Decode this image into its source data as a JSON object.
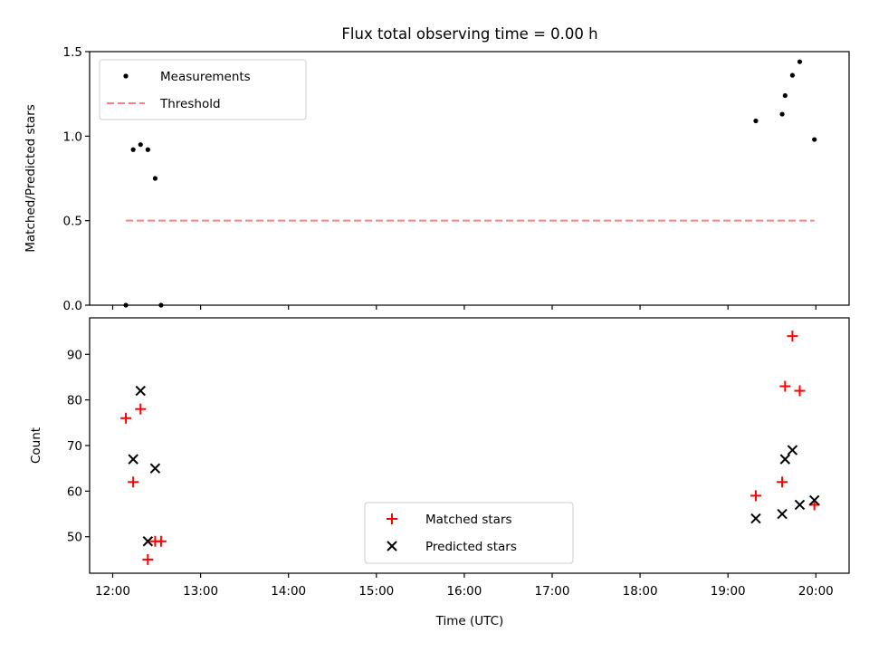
{
  "chart_data": {
    "type": "scatter",
    "title": "Flux total observing time = 0.00 h",
    "x_tick_labels": [
      "12:00",
      "13:00",
      "14:00",
      "15:00",
      "16:00",
      "17:00",
      "18:00",
      "19:00",
      "20:00"
    ],
    "xlabel": "Time (UTC)",
    "top_panel": {
      "ylabel": "Matched/Predicted stars",
      "ylim": [
        0,
        1.5
      ],
      "y_ticks": [
        0.0,
        0.5,
        1.0,
        1.5
      ],
      "y_tick_labels": [
        "0.0",
        "0.5",
        "1.0",
        "1.5"
      ],
      "legend_position": "upper left",
      "series": [
        {
          "name": "Measurements",
          "marker": "dot",
          "color": "#000000",
          "x": [
            "12:09",
            "12:14",
            "12:19",
            "12:24",
            "12:29",
            "12:33",
            "19:19",
            "19:37",
            "19:39",
            "19:44",
            "19:49",
            "19:59"
          ],
          "y": [
            0.0,
            0.92,
            0.95,
            0.92,
            0.75,
            0.0,
            1.09,
            1.13,
            1.24,
            1.36,
            1.44,
            0.98
          ]
        },
        {
          "name": "Threshold",
          "marker": "dashed-line",
          "color": "#ff7f7f",
          "x": [
            "12:09",
            "19:59"
          ],
          "y": [
            0.5,
            0.5
          ]
        }
      ]
    },
    "bottom_panel": {
      "ylabel": "Count",
      "ylim": [
        42,
        98
      ],
      "y_ticks": [
        50,
        60,
        70,
        80,
        90
      ],
      "y_tick_labels": [
        "50",
        "60",
        "70",
        "80",
        "90"
      ],
      "legend_position": "lower center",
      "series": [
        {
          "name": "Matched stars",
          "marker": "plus",
          "color": "#ff0000",
          "x": [
            "12:09",
            "12:14",
            "12:19",
            "12:24",
            "12:29",
            "12:33",
            "19:19",
            "19:37",
            "19:39",
            "19:44",
            "19:49",
            "19:59"
          ],
          "y": [
            76,
            62,
            78,
            45,
            49,
            49,
            59,
            62,
            83,
            94,
            82,
            57
          ]
        },
        {
          "name": "Predicted stars",
          "marker": "x",
          "color": "#000000",
          "x": [
            "12:14",
            "12:19",
            "12:24",
            "12:29",
            "19:19",
            "19:37",
            "19:39",
            "19:44",
            "19:49",
            "19:59"
          ],
          "y": [
            67,
            82,
            49,
            65,
            54,
            55,
            67,
            69,
            57,
            58
          ]
        }
      ]
    }
  }
}
